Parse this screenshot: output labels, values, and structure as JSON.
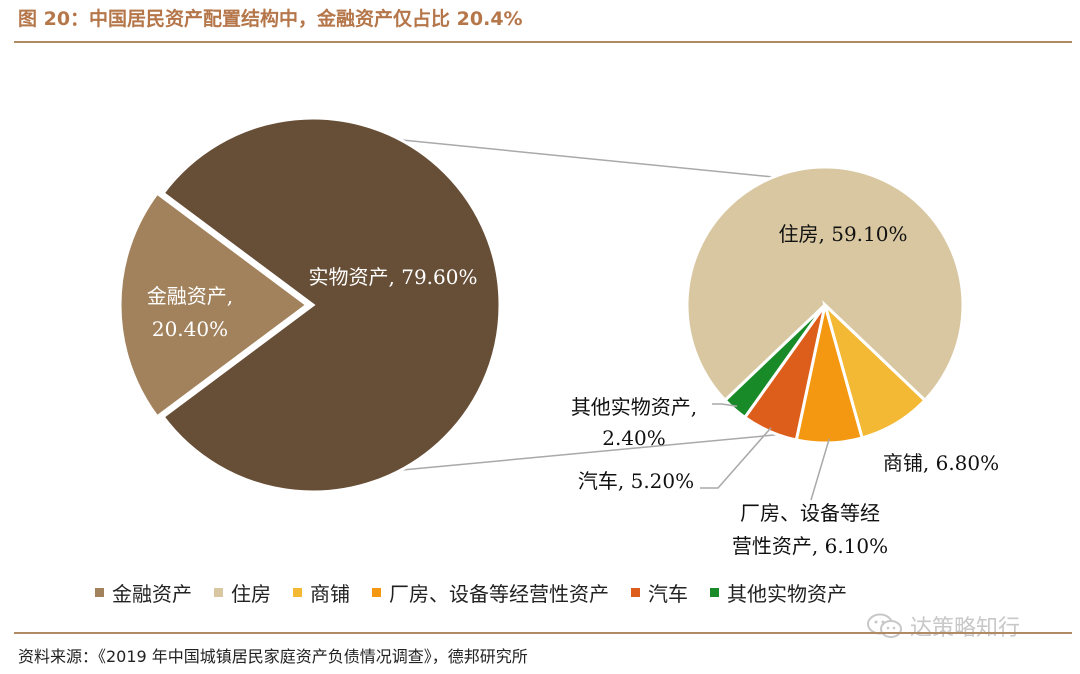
{
  "title": "图 20：中国居民资产配置结构中，金融资产仅占比 20.4%",
  "source": "资料来源：《2019 年中国城镇居民家庭资产负债情况调查》，德邦研究所",
  "watermark": "达策略知行",
  "chart_data": [
    {
      "type": "pie",
      "slices": [
        {
          "name": "实物资产",
          "value": 79.6,
          "label": "实物资产, 79.60%",
          "color": "#674e36"
        },
        {
          "name": "金融资产",
          "value": 20.4,
          "label_line1": "金融资产,",
          "label_line2": "20.40%",
          "color": "#a2825c"
        }
      ]
    },
    {
      "type": "pie",
      "parent_slice": "实物资产",
      "slices": [
        {
          "name": "住房",
          "value": 59.1,
          "label": "住房, 59.10%",
          "color": "#d8c7a0"
        },
        {
          "name": "商铺",
          "value": 6.8,
          "label": "商铺, 6.80%",
          "color": "#f3b935"
        },
        {
          "name": "厂房、设备等经营性资产",
          "value": 6.1,
          "label_line1": "厂房、设备等经",
          "label_line2": "营性资产, 6.10%",
          "color": "#f39810"
        },
        {
          "name": "汽车",
          "value": 5.2,
          "label": "汽车, 5.20%",
          "color": "#dd5e1a"
        },
        {
          "name": "其他实物资产",
          "value": 2.4,
          "label_line1": "其他实物资产,",
          "label_line2": "2.40%",
          "color": "#198a28"
        }
      ]
    }
  ],
  "legend": [
    {
      "label": "金融资产",
      "color": "#a2825c"
    },
    {
      "label": "住房",
      "color": "#d8c7a0"
    },
    {
      "label": "商铺",
      "color": "#f3b935"
    },
    {
      "label": "厂房、设备等经营性资产",
      "color": "#f39810"
    },
    {
      "label": "汽车",
      "color": "#dd5e1a"
    },
    {
      "label": "其他实物资产",
      "color": "#198a28"
    }
  ]
}
